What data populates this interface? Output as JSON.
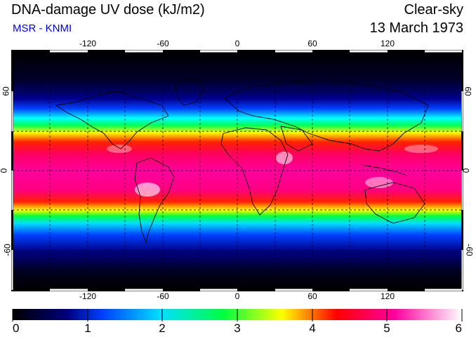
{
  "header": {
    "title": "DNA-damage UV dose (kJ/m2)",
    "source": "MSR - KNMI",
    "sky_condition": "Clear-sky",
    "date": "13 March 1973"
  },
  "map": {
    "lon_ticks": [
      "-120",
      "-60",
      "0",
      "60",
      "120"
    ],
    "lat_ticks": [
      "60",
      "0",
      "-60"
    ],
    "gridline_lons": [
      -150,
      -120,
      -90,
      -60,
      -30,
      0,
      30,
      60,
      90,
      120,
      150
    ],
    "gridline_lats": [
      60,
      30,
      0,
      -30,
      -60
    ]
  },
  "colorbar": {
    "labels": [
      "0",
      "1",
      "2",
      "3",
      "4",
      "5",
      "6"
    ],
    "min": 0,
    "max": 6,
    "colors": [
      "#000000",
      "#00007a",
      "#0040ff",
      "#00e0ff",
      "#00ff40",
      "#ffff00",
      "#ff0000",
      "#ff00a0",
      "#ffffff"
    ]
  }
}
